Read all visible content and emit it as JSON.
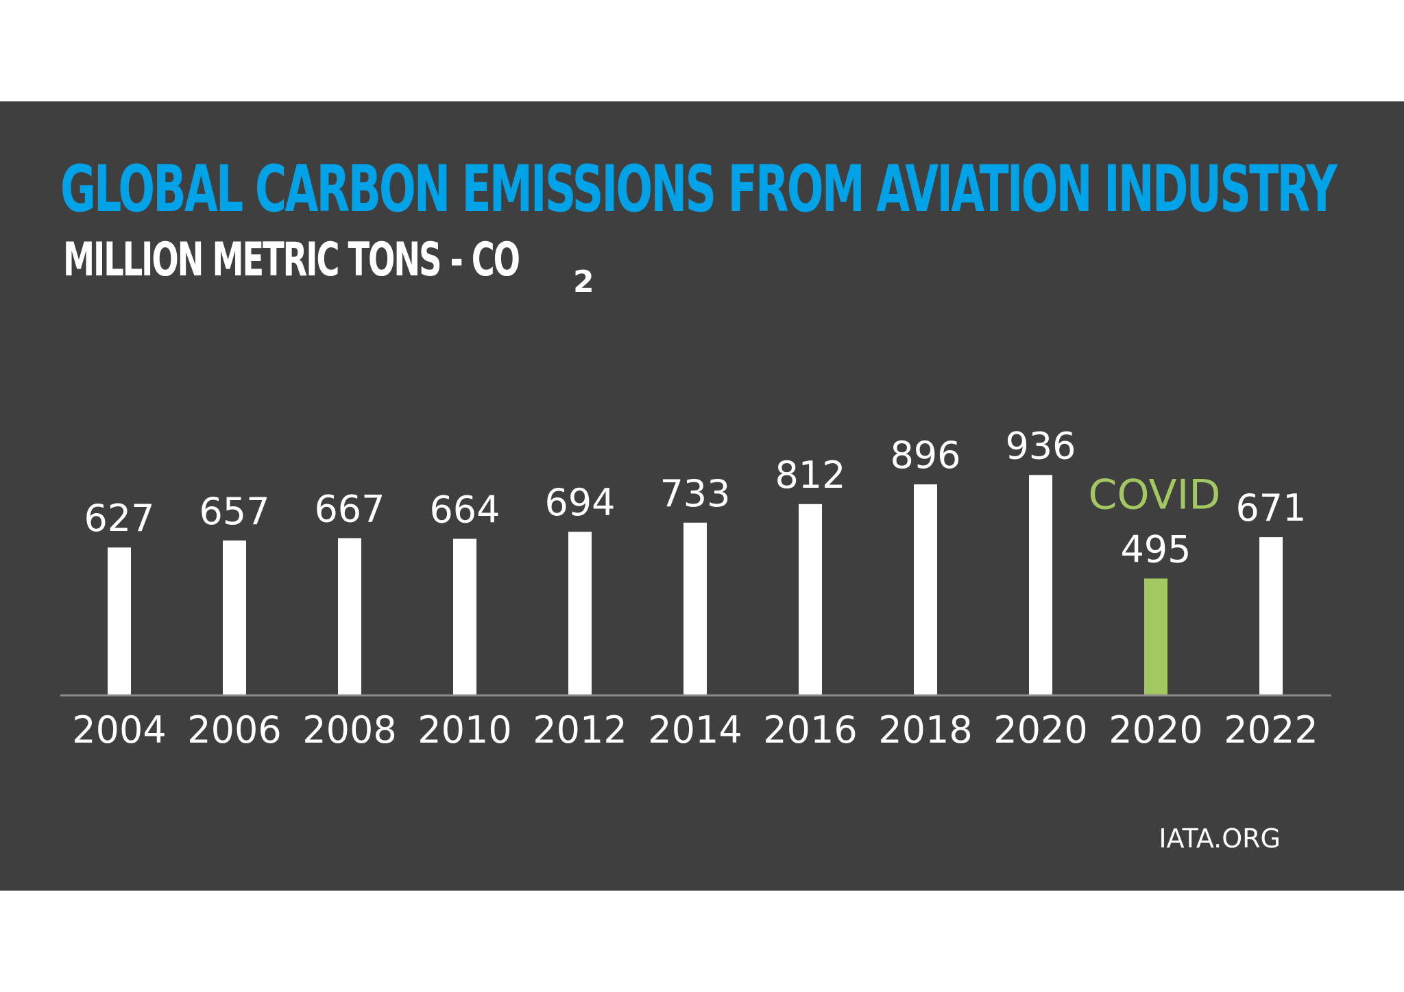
{
  "chart_data": {
    "type": "bar",
    "title": "GLOBAL CARBON EMISSIONS FROM AVIATION INDUSTRY",
    "subtitle": "MILLION METRIC TONS - CO",
    "subtitle_subscript": "2",
    "categories": [
      "2004",
      "2006",
      "2008",
      "2010",
      "2012",
      "2014",
      "2016",
      "2018",
      "2020",
      "2020",
      "2022"
    ],
    "values": [
      627,
      657,
      667,
      664,
      694,
      733,
      812,
      896,
      936,
      495,
      671
    ],
    "highlight_index": 9,
    "annotation": "COVID",
    "ylim": [
      0,
      1000
    ],
    "grid": false,
    "xlabel": "",
    "ylabel": ""
  },
  "colors": {
    "background": "#3f3f3f",
    "title": "#00a2e8",
    "bar": "#ffffff",
    "highlight": "#a3c862",
    "axis": "#8c8c8c",
    "text": "#ffffff"
  },
  "source": "IATA.ORG"
}
